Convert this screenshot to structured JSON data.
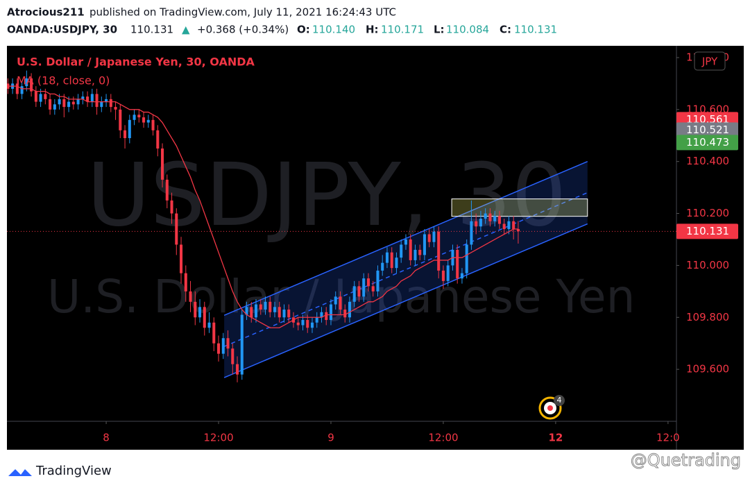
{
  "header": {
    "publisher": "Atrocious211",
    "published": "published on TradingView.com, July 11, 2021 16:24:43 UTC",
    "symbol": "OANDA:USDJPY, 30",
    "last": "110.131",
    "arrow": "▲",
    "change": "+0.368 (+0.34%)",
    "o_label": "O:",
    "o": "110.140",
    "h_label": "H:",
    "h": "110.171",
    "l_label": "L:",
    "l": "110.084",
    "c_label": "C:",
    "c": "110.131"
  },
  "chart_data": {
    "type": "candlestick",
    "legend_title": "U.S. Dollar / Japanese Yen, 30, OANDA",
    "watermark": "USDJPY, 30",
    "watermark_sub": "U.S. Dollar / Japanese Yen",
    "currency": "JPY",
    "up_color": "#2196f3",
    "down_color": "#f23645",
    "x": [
      -10.5,
      -10,
      -9.5,
      -9,
      -8.5,
      -8,
      -7.5,
      -7,
      -6.5,
      -6,
      -5.5,
      -5,
      -4.5,
      -4,
      -3.5,
      -3,
      -2.5,
      -2,
      -1.5,
      -1,
      -0.5,
      0,
      0.5,
      1,
      1.5,
      2,
      2.5,
      3,
      3.5,
      4,
      4.5,
      5,
      5.5,
      6,
      6.5,
      7,
      7.5,
      8,
      8.5,
      9,
      9.5,
      10,
      10.5,
      11,
      11.5,
      12,
      12.5,
      13,
      13.5,
      14,
      14.5,
      15,
      15.5,
      16,
      16.5,
      17,
      17.5,
      18,
      18.5,
      19,
      19.5,
      20,
      20.5,
      21,
      21.5,
      22,
      22.5,
      23,
      23.5,
      24,
      24.5,
      25,
      25.5,
      26,
      26.5,
      27,
      27.5,
      28,
      28.5,
      29,
      29.5,
      30,
      30.5,
      31,
      31.5,
      32,
      32.5,
      33,
      33.5,
      34,
      34.5,
      35,
      35.5,
      36,
      36.5,
      37,
      37.5,
      38,
      38.5,
      39,
      39.5,
      40,
      40.5,
      41,
      41.5,
      42,
      42.5,
      43,
      43.5,
      44
    ],
    "open": [
      110.7,
      110.68,
      110.7,
      110.66,
      110.69,
      110.72,
      110.67,
      110.63,
      110.66,
      110.64,
      110.6,
      110.62,
      110.64,
      110.61,
      110.63,
      110.62,
      110.64,
      110.65,
      110.63,
      110.66,
      110.61,
      110.63,
      110.64,
      110.61,
      110.6,
      110.52,
      110.49,
      110.56,
      110.58,
      110.57,
      110.55,
      110.56,
      110.52,
      110.45,
      110.33,
      110.25,
      110.2,
      110.08,
      109.97,
      109.9,
      109.86,
      109.8,
      109.84,
      109.76,
      109.78,
      109.7,
      109.66,
      109.72,
      109.68,
      109.62,
      109.58,
      109.81,
      109.84,
      109.8,
      109.85,
      109.83,
      109.86,
      109.82,
      109.84,
      109.8,
      109.83,
      109.8,
      109.78,
      109.77,
      109.79,
      109.76,
      109.78,
      109.8,
      109.82,
      109.79,
      109.85,
      109.88,
      109.83,
      109.8,
      109.86,
      109.92,
      109.88,
      109.95,
      109.92,
      109.9,
      109.98,
      110.01,
      110.05,
      109.99,
      110.03,
      110.08,
      110.1,
      110.02,
      110.06,
      110.04,
      110.12,
      110.09,
      110.13,
      109.98,
      109.94,
      110.0,
      110.06,
      109.95,
      109.97,
      110.08,
      110.17,
      110.15,
      110.18,
      110.2,
      110.17,
      110.19,
      110.16,
      110.14,
      110.17,
      110.14
    ],
    "high": [
      110.72,
      110.72,
      110.72,
      110.71,
      110.75,
      110.74,
      110.69,
      110.68,
      110.68,
      110.66,
      110.64,
      110.66,
      110.66,
      110.65,
      110.65,
      110.66,
      110.67,
      110.67,
      110.68,
      110.68,
      110.65,
      110.66,
      110.66,
      110.63,
      110.62,
      110.54,
      110.58,
      110.6,
      110.6,
      110.59,
      110.58,
      110.58,
      110.54,
      110.47,
      110.35,
      110.28,
      110.22,
      110.11,
      110.0,
      109.94,
      109.9,
      109.87,
      109.86,
      109.82,
      109.8,
      109.73,
      109.74,
      109.75,
      109.7,
      109.65,
      109.83,
      109.86,
      109.86,
      109.87,
      109.87,
      109.88,
      109.88,
      109.86,
      109.86,
      109.85,
      109.85,
      109.82,
      109.8,
      109.81,
      109.81,
      109.8,
      109.82,
      109.84,
      109.84,
      109.87,
      109.9,
      109.9,
      109.85,
      109.88,
      109.94,
      109.94,
      109.97,
      109.97,
      109.94,
      110.0,
      110.04,
      110.07,
      110.07,
      110.05,
      110.1,
      110.12,
      110.12,
      110.08,
      110.08,
      110.14,
      110.14,
      110.15,
      110.15,
      110.0,
      110.02,
      110.08,
      110.08,
      109.99,
      110.1,
      110.25,
      110.2,
      110.21,
      110.22,
      110.22,
      110.21,
      110.21,
      110.18,
      110.19,
      110.19,
      110.171
    ],
    "low": [
      110.66,
      110.66,
      110.64,
      110.64,
      110.67,
      110.65,
      110.61,
      110.61,
      110.62,
      110.58,
      110.58,
      110.6,
      110.57,
      110.59,
      110.6,
      110.6,
      110.62,
      110.61,
      110.61,
      110.58,
      110.59,
      110.61,
      110.59,
      110.56,
      110.49,
      110.45,
      110.47,
      110.54,
      110.55,
      110.53,
      110.53,
      110.5,
      110.42,
      110.3,
      110.22,
      110.16,
      110.04,
      109.93,
      109.86,
      109.82,
      109.77,
      109.78,
      109.73,
      109.74,
      109.67,
      109.63,
      109.64,
      109.65,
      109.58,
      109.55,
      109.56,
      109.79,
      109.78,
      109.78,
      109.81,
      109.81,
      109.8,
      109.8,
      109.78,
      109.78,
      109.78,
      109.76,
      109.75,
      109.75,
      109.74,
      109.74,
      109.76,
      109.78,
      109.77,
      109.77,
      109.83,
      109.81,
      109.78,
      109.78,
      109.84,
      109.86,
      109.86,
      109.9,
      109.88,
      109.88,
      109.96,
      109.99,
      109.97,
      109.97,
      110.01,
      110.06,
      110.0,
      110.0,
      110.02,
      110.02,
      110.07,
      110.07,
      109.95,
      109.91,
      109.92,
      109.98,
      109.93,
      109.93,
      109.95,
      110.06,
      110.12,
      110.13,
      110.16,
      110.15,
      110.15,
      110.14,
      110.12,
      110.12,
      110.1,
      110.084
    ],
    "close": [
      110.68,
      110.7,
      110.66,
      110.69,
      110.72,
      110.67,
      110.63,
      110.66,
      110.64,
      110.6,
      110.62,
      110.64,
      110.61,
      110.63,
      110.62,
      110.64,
      110.65,
      110.63,
      110.66,
      110.61,
      110.63,
      110.64,
      110.61,
      110.6,
      110.52,
      110.49,
      110.56,
      110.58,
      110.57,
      110.55,
      110.56,
      110.52,
      110.45,
      110.33,
      110.25,
      110.2,
      110.08,
      109.97,
      109.9,
      109.86,
      109.8,
      109.84,
      109.76,
      109.78,
      109.7,
      109.66,
      109.72,
      109.68,
      109.62,
      109.58,
      109.81,
      109.84,
      109.8,
      109.85,
      109.83,
      109.86,
      109.82,
      109.84,
      109.8,
      109.83,
      109.8,
      109.78,
      109.77,
      109.79,
      109.76,
      109.78,
      109.8,
      109.82,
      109.79,
      109.85,
      109.88,
      109.83,
      109.8,
      109.86,
      109.92,
      109.88,
      109.95,
      109.92,
      109.9,
      109.98,
      110.01,
      110.05,
      109.99,
      110.03,
      110.08,
      110.1,
      110.02,
      110.06,
      110.04,
      110.12,
      110.09,
      110.13,
      109.98,
      109.94,
      110.0,
      110.06,
      109.95,
      109.97,
      110.08,
      110.17,
      110.15,
      110.18,
      110.2,
      110.17,
      110.19,
      110.16,
      110.14,
      110.17,
      110.14,
      110.131
    ],
    "ma": {
      "name": "MA (18, close, 0)",
      "color": "#f23645",
      "values": [
        110.69,
        110.69,
        110.69,
        110.68,
        110.68,
        110.68,
        110.67,
        110.67,
        110.67,
        110.66,
        110.66,
        110.65,
        110.65,
        110.64,
        110.64,
        110.64,
        110.64,
        110.63,
        110.63,
        110.63,
        110.63,
        110.63,
        110.63,
        110.63,
        110.62,
        110.61,
        110.6,
        110.6,
        110.6,
        110.59,
        110.59,
        110.58,
        110.57,
        110.55,
        110.52,
        110.49,
        110.46,
        110.42,
        110.38,
        110.34,
        110.29,
        110.25,
        110.2,
        110.15,
        110.1,
        110.05,
        110.0,
        109.95,
        109.9,
        109.86,
        109.83,
        109.81,
        109.8,
        109.79,
        109.78,
        109.77,
        109.76,
        109.76,
        109.76,
        109.77,
        109.78,
        109.79,
        109.8,
        109.8,
        109.8,
        109.8,
        109.8,
        109.8,
        109.81,
        109.81,
        109.81,
        109.81,
        109.81,
        109.82,
        109.83,
        109.84,
        109.85,
        109.86,
        109.86,
        109.87,
        109.88,
        109.9,
        109.91,
        109.92,
        109.94,
        109.95,
        109.96,
        109.98,
        109.99,
        110.0,
        110.01,
        110.02,
        110.02,
        110.02,
        110.02,
        110.03,
        110.03,
        110.03,
        110.04,
        110.05,
        110.06,
        110.07,
        110.08,
        110.09,
        110.1,
        110.11,
        110.12,
        110.13,
        110.14,
        110.14
      ]
    },
    "channel": {
      "color": "#2962ff",
      "x": [
        12.6,
        51.4
      ],
      "upper": [
        109.808,
        110.4
      ],
      "middle": [
        109.688,
        110.28
      ],
      "lower": [
        109.568,
        110.16
      ]
    },
    "box": {
      "color": "#f5f56b",
      "x": [
        36.9,
        51.4
      ],
      "y": [
        110.189,
        110.256
      ]
    },
    "xlim": [
      -10.6,
      60.9
    ],
    "ylim": [
      109.4,
      110.84
    ],
    "xticks": [
      {
        "value": 0,
        "label": "8"
      },
      {
        "value": 12,
        "label": "12:00"
      },
      {
        "value": 24,
        "label": "9"
      },
      {
        "value": 36,
        "label": "12:00"
      },
      {
        "value": 48,
        "label": "12"
      },
      {
        "value": 60,
        "label": "12:0"
      }
    ],
    "yticks": [
      {
        "value": 109.6,
        "label": "109.600"
      },
      {
        "value": 109.8,
        "label": "109.800"
      },
      {
        "value": 110,
        "label": "110.000"
      },
      {
        "value": 110.2,
        "label": "110.200"
      },
      {
        "value": 110.4,
        "label": "110.400"
      },
      {
        "value": 110.6,
        "label": "110.600"
      },
      {
        "value": 110.8,
        "label": "110.800"
      }
    ],
    "price_tags": [
      {
        "value": 110.561,
        "color": "#f23645"
      },
      {
        "value": 110.521,
        "color": "#787b86"
      },
      {
        "value": 110.473,
        "color": "#43a047"
      },
      {
        "value": 110.131,
        "color": "#f23645"
      }
    ],
    "alert_count": 4
  },
  "footer": {
    "brand": "TradingView",
    "credit": "@Quetrading"
  }
}
